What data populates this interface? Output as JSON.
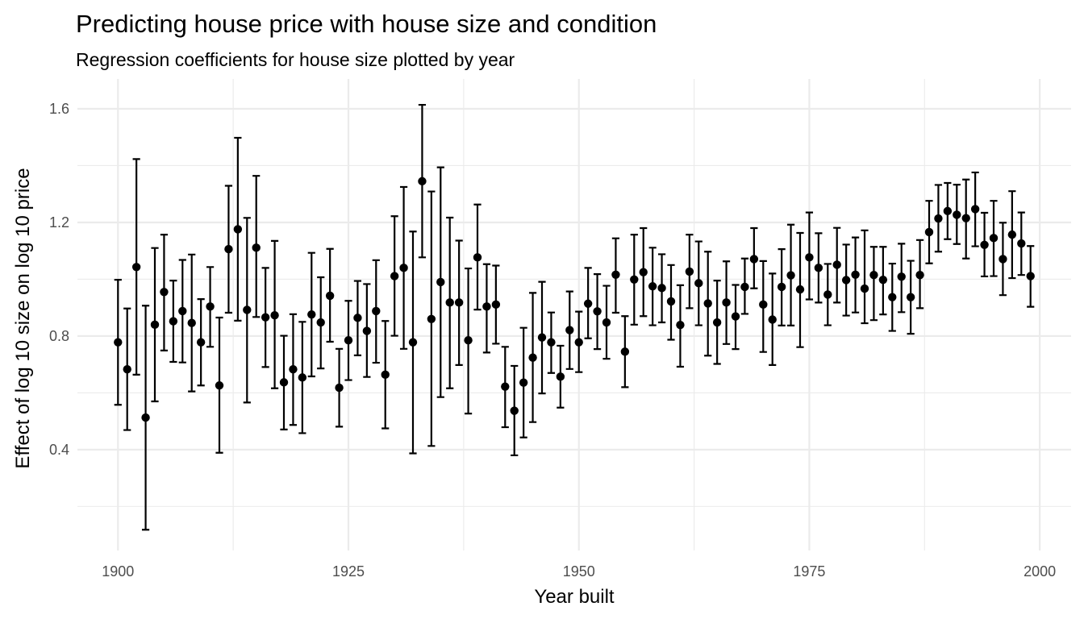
{
  "chart_data": {
    "type": "scatter",
    "title": "Predicting house price with house size and condition",
    "subtitle": "Regression coefficients for house size plotted by year",
    "xlabel": "Year built",
    "ylabel": "Effect of log 10 size on log 10 price",
    "xlim": [
      1895.6,
      2003.4
    ],
    "ylim": [
      0.045,
      1.705
    ],
    "x_ticks": [
      1900,
      1925,
      1950,
      1975,
      2000
    ],
    "x_tick_labels": [
      "1900",
      "1925",
      "1950",
      "1975",
      "2000"
    ],
    "y_ticks": [
      0.4,
      0.8,
      1.2,
      1.6
    ],
    "y_tick_labels": [
      "0.4",
      "0.8",
      "1.2",
      "1.6"
    ],
    "grid": true,
    "colors": {
      "points": "#000000",
      "error_bars": "#000000",
      "grid": "#ebebeb"
    },
    "series": [
      {
        "x": [
          1900,
          1901,
          1902,
          1903,
          1904,
          1905,
          1906,
          1907,
          1908,
          1909,
          1910,
          1911,
          1912,
          1913,
          1914,
          1915,
          1916,
          1917,
          1918,
          1919,
          1920,
          1921,
          1922,
          1923,
          1924,
          1925,
          1926,
          1927,
          1928,
          1929,
          1930,
          1931,
          1932,
          1933,
          1934,
          1935,
          1936,
          1937,
          1938,
          1939,
          1940,
          1941,
          1942,
          1943,
          1944,
          1945,
          1946,
          1947,
          1948,
          1949,
          1950,
          1951,
          1952,
          1953,
          1954,
          1955,
          1956,
          1957,
          1958,
          1959,
          1960,
          1961,
          1962,
          1963,
          1964,
          1965,
          1966,
          1967,
          1968,
          1969,
          1970,
          1971,
          1972,
          1973,
          1974,
          1975,
          1976,
          1977,
          1978,
          1979,
          1980,
          1981,
          1982,
          1983,
          1984,
          1985,
          1986,
          1987,
          1988,
          1989,
          1990,
          1991,
          1992,
          1993,
          1994,
          1995,
          1996,
          1997,
          1998,
          1999
        ],
        "y": [
          0.778,
          0.683,
          1.043,
          0.513,
          0.84,
          0.955,
          0.852,
          0.888,
          0.846,
          0.778,
          0.904,
          0.626,
          1.106,
          1.176,
          0.892,
          1.111,
          0.866,
          0.873,
          0.637,
          0.683,
          0.654,
          0.876,
          0.848,
          0.942,
          0.618,
          0.785,
          0.864,
          0.818,
          0.888,
          0.664,
          1.011,
          1.04,
          0.778,
          1.345,
          0.86,
          0.99,
          0.918,
          0.918,
          0.785,
          1.077,
          0.904,
          0.911,
          0.622,
          0.537,
          0.636,
          0.724,
          0.795,
          0.778,
          0.657,
          0.821,
          0.778,
          0.914,
          0.887,
          0.848,
          1.016,
          0.745,
          0.999,
          1.025,
          0.975,
          0.969,
          0.922,
          0.839,
          1.027,
          0.986,
          0.915,
          0.848,
          0.918,
          0.869,
          0.973,
          1.071,
          0.911,
          0.858,
          0.973,
          1.014,
          0.964,
          1.077,
          1.04,
          0.946,
          1.051,
          0.997,
          1.016,
          0.967,
          1.015,
          0.998,
          0.937,
          1.009,
          0.937,
          1.015,
          1.166,
          1.214,
          1.24,
          1.227,
          1.215,
          1.247,
          1.121,
          1.145,
          1.071,
          1.157,
          1.126,
          1.011
        ],
        "ymin": [
          0.558,
          0.469,
          0.664,
          0.118,
          0.57,
          0.749,
          0.709,
          0.707,
          0.605,
          0.626,
          0.762,
          0.389,
          0.882,
          0.854,
          0.566,
          0.867,
          0.691,
          0.616,
          0.471,
          0.487,
          0.458,
          0.658,
          0.686,
          0.78,
          0.481,
          0.645,
          0.732,
          0.656,
          0.706,
          0.475,
          0.801,
          0.755,
          0.387,
          1.077,
          0.413,
          0.585,
          0.616,
          0.698,
          0.527,
          0.893,
          0.742,
          0.773,
          0.479,
          0.38,
          0.443,
          0.497,
          0.598,
          0.67,
          0.548,
          0.684,
          0.673,
          0.792,
          0.754,
          0.72,
          0.882,
          0.62,
          0.84,
          0.87,
          0.838,
          0.848,
          0.787,
          0.692,
          0.898,
          0.838,
          0.731,
          0.702,
          0.772,
          0.754,
          0.878,
          0.968,
          0.744,
          0.698,
          0.837,
          0.837,
          0.761,
          0.929,
          0.918,
          0.838,
          0.918,
          0.872,
          0.883,
          0.845,
          0.856,
          0.876,
          0.818,
          0.884,
          0.808,
          0.898,
          1.056,
          1.097,
          1.141,
          1.124,
          1.073,
          1.116,
          1.01,
          1.011,
          0.944,
          1.004,
          1.015,
          0.903
        ],
        "ymax": [
          0.998,
          0.897,
          1.423,
          0.907,
          1.11,
          1.157,
          0.995,
          1.068,
          1.087,
          0.93,
          1.043,
          0.865,
          1.329,
          1.498,
          1.216,
          1.364,
          1.04,
          1.135,
          0.801,
          0.877,
          0.85,
          1.093,
          1.007,
          1.107,
          0.755,
          0.924,
          0.994,
          0.983,
          1.067,
          0.853,
          1.222,
          1.325,
          1.168,
          1.614,
          1.309,
          1.394,
          1.217,
          1.136,
          1.038,
          1.263,
          1.053,
          1.048,
          0.762,
          0.695,
          0.829,
          0.952,
          0.991,
          0.883,
          0.766,
          0.957,
          0.886,
          1.04,
          1.018,
          0.977,
          1.144,
          0.87,
          1.157,
          1.18,
          1.111,
          1.088,
          1.05,
          0.979,
          1.157,
          1.133,
          1.097,
          0.995,
          1.063,
          0.98,
          1.073,
          1.18,
          1.064,
          1.02,
          1.106,
          1.192,
          1.163,
          1.235,
          1.162,
          1.054,
          1.181,
          1.122,
          1.147,
          1.172,
          1.114,
          1.114,
          1.055,
          1.125,
          1.065,
          1.138,
          1.276,
          1.332,
          1.339,
          1.333,
          1.351,
          1.376,
          1.234,
          1.276,
          1.199,
          1.31,
          1.235,
          1.117
        ]
      }
    ]
  }
}
